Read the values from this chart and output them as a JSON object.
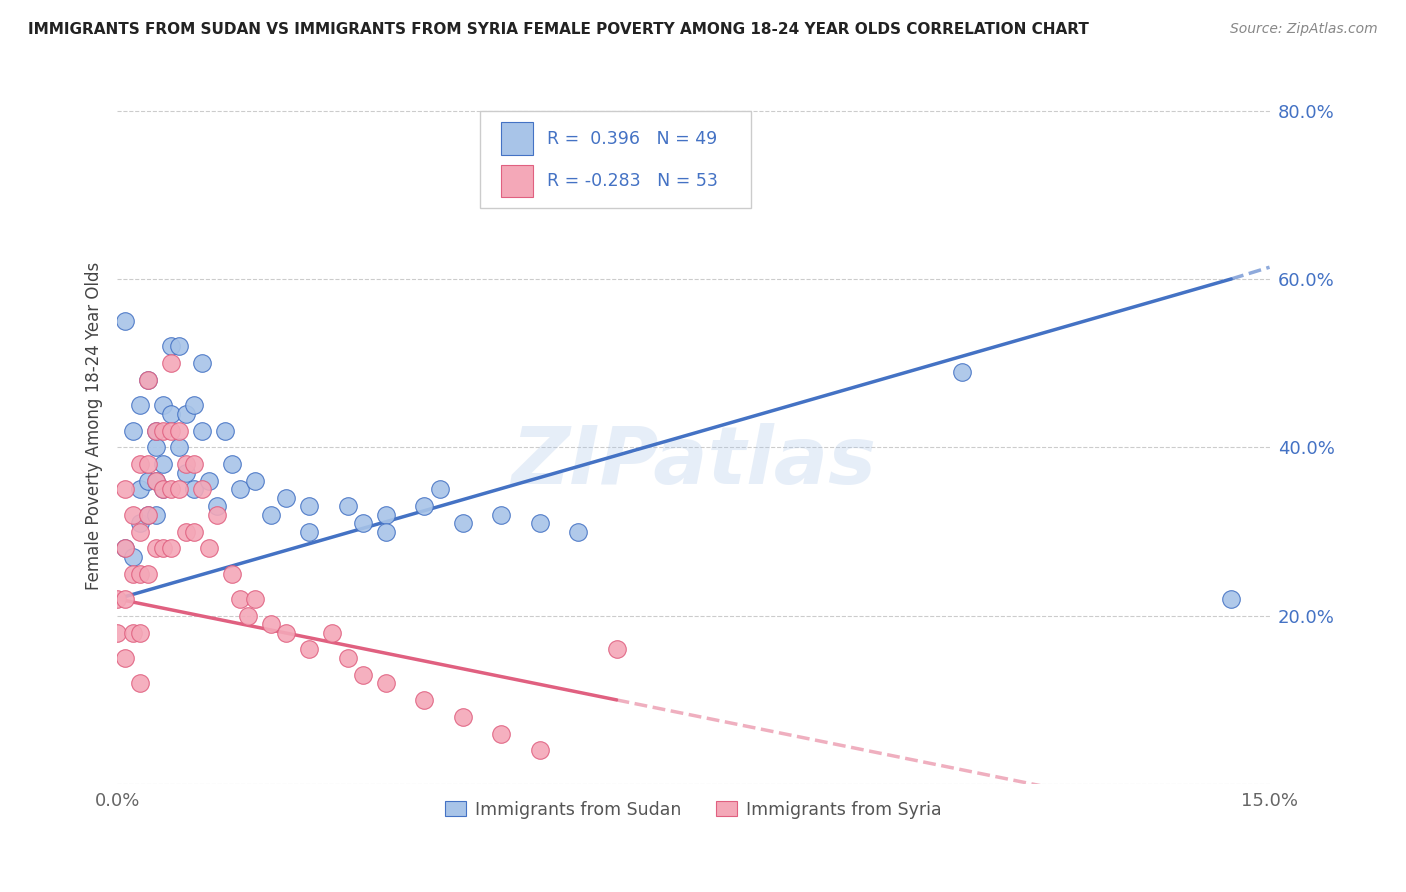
{
  "title": "IMMIGRANTS FROM SUDAN VS IMMIGRANTS FROM SYRIA FEMALE POVERTY AMONG 18-24 YEAR OLDS CORRELATION CHART",
  "source": "Source: ZipAtlas.com",
  "ylabel": "Female Poverty Among 18-24 Year Olds",
  "legend_label1": "Immigrants from Sudan",
  "legend_label2": "Immigrants from Syria",
  "R1": 0.396,
  "N1": 49,
  "R2": -0.283,
  "N2": 53,
  "color_sudan": "#a8c4e8",
  "color_syria": "#f4a8b8",
  "line_color_sudan": "#4472c4",
  "line_color_syria": "#e06080",
  "xmin": 0.0,
  "xmax": 0.15,
  "ymin": 0.0,
  "ymax": 0.85,
  "watermark": "ZIPatlas",
  "sudan_x": [
    0.001,
    0.001,
    0.002,
    0.002,
    0.003,
    0.003,
    0.003,
    0.004,
    0.004,
    0.004,
    0.005,
    0.005,
    0.005,
    0.005,
    0.006,
    0.006,
    0.006,
    0.007,
    0.007,
    0.008,
    0.008,
    0.009,
    0.009,
    0.01,
    0.01,
    0.011,
    0.011,
    0.012,
    0.013,
    0.014,
    0.015,
    0.016,
    0.018,
    0.02,
    0.022,
    0.025,
    0.025,
    0.03,
    0.032,
    0.035,
    0.035,
    0.04,
    0.042,
    0.045,
    0.05,
    0.055,
    0.06,
    0.11,
    0.145
  ],
  "sudan_y": [
    0.28,
    0.55,
    0.42,
    0.27,
    0.35,
    0.31,
    0.45,
    0.36,
    0.48,
    0.32,
    0.36,
    0.4,
    0.32,
    0.42,
    0.35,
    0.45,
    0.38,
    0.44,
    0.52,
    0.4,
    0.52,
    0.37,
    0.44,
    0.35,
    0.45,
    0.42,
    0.5,
    0.36,
    0.33,
    0.42,
    0.38,
    0.35,
    0.36,
    0.32,
    0.34,
    0.33,
    0.3,
    0.33,
    0.31,
    0.32,
    0.3,
    0.33,
    0.35,
    0.31,
    0.32,
    0.31,
    0.3,
    0.49,
    0.22
  ],
  "syria_x": [
    0.0,
    0.0,
    0.001,
    0.001,
    0.001,
    0.001,
    0.002,
    0.002,
    0.002,
    0.003,
    0.003,
    0.003,
    0.003,
    0.003,
    0.004,
    0.004,
    0.004,
    0.004,
    0.005,
    0.005,
    0.005,
    0.006,
    0.006,
    0.006,
    0.007,
    0.007,
    0.007,
    0.007,
    0.008,
    0.008,
    0.009,
    0.009,
    0.01,
    0.01,
    0.011,
    0.012,
    0.013,
    0.015,
    0.016,
    0.017,
    0.018,
    0.02,
    0.022,
    0.025,
    0.028,
    0.03,
    0.032,
    0.035,
    0.04,
    0.045,
    0.05,
    0.055,
    0.065
  ],
  "syria_y": [
    0.22,
    0.18,
    0.35,
    0.28,
    0.22,
    0.15,
    0.32,
    0.25,
    0.18,
    0.38,
    0.3,
    0.25,
    0.18,
    0.12,
    0.48,
    0.38,
    0.32,
    0.25,
    0.42,
    0.36,
    0.28,
    0.42,
    0.35,
    0.28,
    0.5,
    0.42,
    0.35,
    0.28,
    0.42,
    0.35,
    0.38,
    0.3,
    0.38,
    0.3,
    0.35,
    0.28,
    0.32,
    0.25,
    0.22,
    0.2,
    0.22,
    0.19,
    0.18,
    0.16,
    0.18,
    0.15,
    0.13,
    0.12,
    0.1,
    0.08,
    0.06,
    0.04,
    0.16
  ]
}
